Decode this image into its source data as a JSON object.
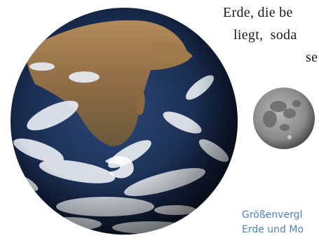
{
  "body_text": {
    "line_1": "Erde, die be",
    "line_2": "liegt, soda",
    "line_3": "se"
  },
  "caption": {
    "line_1": "Größenvergl",
    "line_2": "Erde und Mo"
  },
  "images": {
    "earth": "earth-photo",
    "moon": "moon-photo"
  },
  "colors": {
    "caption": "#4a84c6",
    "text": "#1a1a1a",
    "background": "#ffffff"
  }
}
